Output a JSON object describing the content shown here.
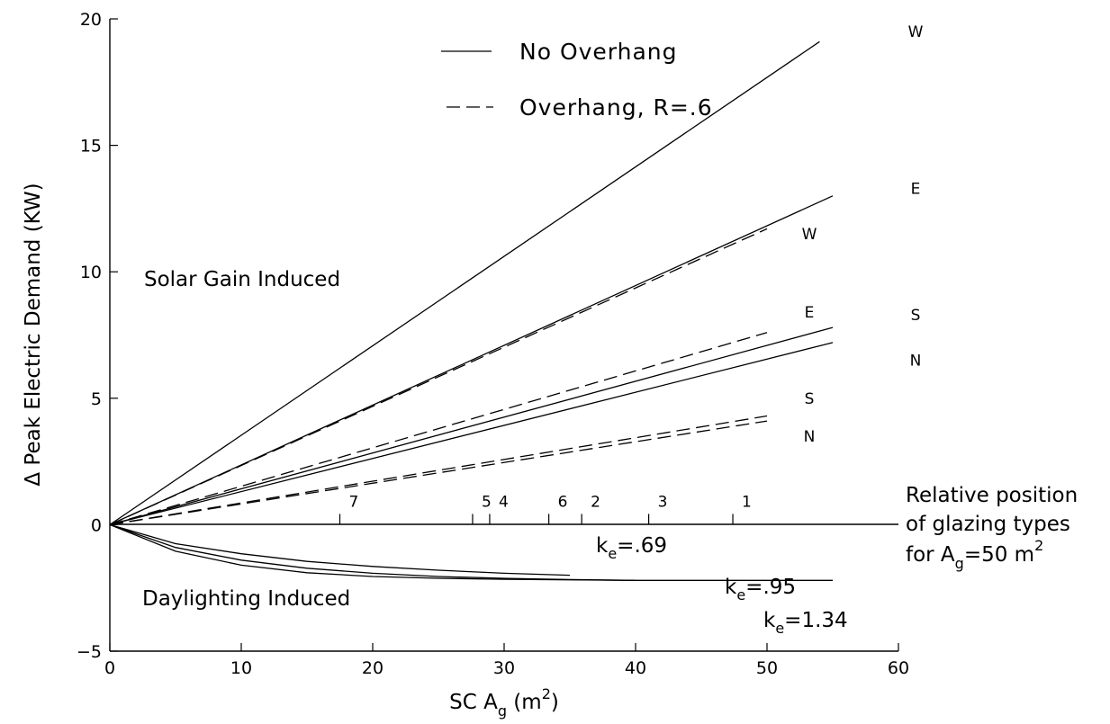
{
  "chart_data": {
    "type": "line",
    "title": "",
    "xlabel": "SC A",
    "xlabel_sub": "g",
    "xlabel_unit_open": " (m",
    "xlabel_unit_sup": "2",
    "xlabel_unit_close": ")",
    "ylabel": "Δ Peak Electric Demand (KW)",
    "xlim": [
      0,
      60
    ],
    "ylim": [
      -5,
      20
    ],
    "x_ticks": [
      0,
      10,
      20,
      30,
      40,
      50,
      60
    ],
    "x_tick_labels": [
      "0",
      "10",
      "20",
      "30",
      "40",
      "50",
      "60"
    ],
    "y_ticks": [
      -5,
      0,
      5,
      10,
      15,
      20
    ],
    "y_tick_labels": [
      "−5",
      "0",
      "5",
      "10",
      "15",
      "20"
    ],
    "grid": false,
    "legend": {
      "placement": "top-center",
      "entries": [
        {
          "style": "solid",
          "label": "No Overhang"
        },
        {
          "style": "dashed",
          "label": "Overhang, R=.6"
        }
      ]
    },
    "series": [
      {
        "style": "solid",
        "x": [
          0,
          54
        ],
        "y": [
          0,
          19.1
        ]
      },
      {
        "style": "solid",
        "x": [
          0,
          55
        ],
        "y": [
          0,
          13.0
        ]
      },
      {
        "style": "solid",
        "x": [
          0,
          55
        ],
        "y": [
          0,
          7.8
        ]
      },
      {
        "style": "solid",
        "x": [
          0,
          55
        ],
        "y": [
          0,
          7.2
        ]
      },
      {
        "style": "dashed",
        "x": [
          0,
          50
        ],
        "y": [
          0,
          11.7
        ]
      },
      {
        "style": "dashed",
        "x": [
          0,
          50
        ],
        "y": [
          0,
          7.6
        ]
      },
      {
        "style": "dashed",
        "x": [
          0,
          50
        ],
        "y": [
          0,
          4.3
        ]
      },
      {
        "style": "dashed",
        "x": [
          0,
          50
        ],
        "y": [
          0,
          4.1
        ]
      },
      {
        "style": "solid",
        "x": [
          0,
          5,
          10,
          15,
          20,
          25,
          30,
          35
        ],
        "y": [
          0,
          -0.75,
          -1.15,
          -1.45,
          -1.65,
          -1.8,
          -1.92,
          -2.0
        ]
      },
      {
        "style": "solid",
        "x": [
          0,
          5,
          10,
          15,
          20,
          25,
          30,
          35,
          40
        ],
        "y": [
          0,
          -0.9,
          -1.4,
          -1.72,
          -1.92,
          -2.05,
          -2.12,
          -2.17,
          -2.2
        ]
      },
      {
        "style": "solid",
        "x": [
          0,
          5,
          10,
          15,
          20,
          25,
          30,
          35,
          40,
          45,
          50,
          55
        ],
        "y": [
          0,
          -1.05,
          -1.6,
          -1.9,
          -2.05,
          -2.12,
          -2.16,
          -2.18,
          -2.2,
          -2.2,
          -2.2,
          -2.2
        ]
      }
    ],
    "right_labels_solid": [
      {
        "text": "W",
        "y": 19.5
      },
      {
        "text": "E",
        "y": 13.3
      },
      {
        "text": "S",
        "y": 8.3
      },
      {
        "text": "N",
        "y": 6.5
      }
    ],
    "right_labels_dashed": [
      {
        "text": "W",
        "y": 11.5
      },
      {
        "text": "E",
        "y": 8.4
      },
      {
        "text": "S",
        "y": 5.0
      },
      {
        "text": "N",
        "y": 3.5
      }
    ],
    "glazing_markers": [
      {
        "label": "7",
        "x": 17.5
      },
      {
        "label": "5",
        "x": 27.6
      },
      {
        "label": "4",
        "x": 28.9
      },
      {
        "label": "6",
        "x": 33.4
      },
      {
        "label": "2",
        "x": 35.9
      },
      {
        "label": "3",
        "x": 41.0
      },
      {
        "label": "1",
        "x": 47.4
      }
    ],
    "annotations": {
      "solar": "Solar Gain Induced",
      "daylighting": "Daylighting Induced",
      "relative_line1": "Relative position",
      "relative_line2": "of glazing types",
      "relative_line3_prefix": "for A",
      "relative_line3_sub": "g",
      "relative_line3_mid": "=50 m",
      "relative_line3_sup": "2",
      "ke_letter": "k",
      "ke_sub": "e",
      "ke_values": [
        "=.69",
        "=.95",
        "=1.34"
      ]
    }
  }
}
